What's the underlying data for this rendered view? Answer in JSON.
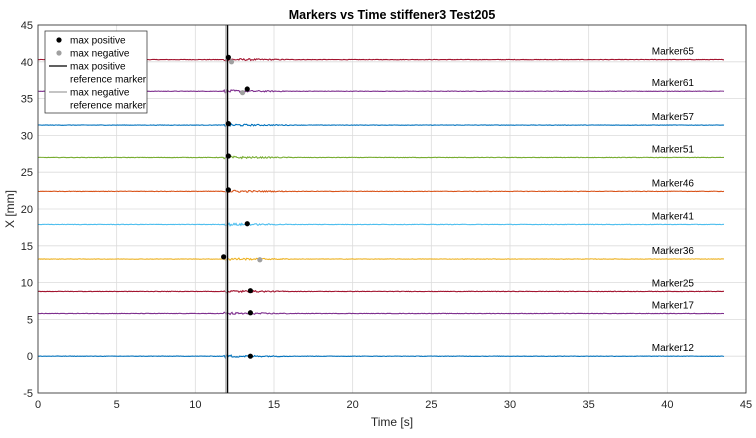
{
  "chart_data": {
    "type": "line",
    "title": "Markers vs Time stiffener3 Test205",
    "xlabel": "Time [s]",
    "ylabel": "X [mm]",
    "xlim": [
      0,
      45
    ],
    "ylim": [
      -5,
      45
    ],
    "xticks": [
      0,
      5,
      10,
      15,
      20,
      25,
      30,
      35,
      40,
      45
    ],
    "yticks": [
      -5,
      0,
      5,
      10,
      15,
      20,
      25,
      30,
      35,
      40,
      45
    ],
    "grid": true,
    "legend_position": "top-left",
    "legend": [
      {
        "label": "max positive",
        "style": "dot",
        "color": "#000000"
      },
      {
        "label": "max negative",
        "style": "dot",
        "color": "#a0a0a0"
      },
      {
        "label": "max positive reference marker",
        "style": "line",
        "color": "#000000"
      },
      {
        "label": "max negative reference marker",
        "style": "line",
        "color": "#a0a0a0"
      }
    ],
    "x_range": [
      0,
      43.6
    ],
    "reference_lines": {
      "max_positive_x": 12.05,
      "max_negative_x": 11.95
    },
    "series": [
      {
        "name": "Marker65",
        "baseline": 40.3,
        "color": "#a2142f",
        "max_positive": [
          12.1,
          40.6
        ],
        "max_negative": [
          12.3,
          40.0
        ]
      },
      {
        "name": "Marker61",
        "baseline": 36.0,
        "color": "#7e2f8e",
        "max_positive": [
          13.3,
          36.3
        ],
        "max_negative": [
          13.0,
          35.8
        ]
      },
      {
        "name": "Marker57",
        "baseline": 31.4,
        "color": "#0072bd",
        "max_positive": [
          12.1,
          31.6
        ],
        "max_negative": null
      },
      {
        "name": "Marker51",
        "baseline": 27.0,
        "color": "#77ac30",
        "max_positive": [
          12.1,
          27.2
        ],
        "max_negative": null
      },
      {
        "name": "Marker46",
        "baseline": 22.4,
        "color": "#d95319",
        "max_positive": [
          12.1,
          22.6
        ],
        "max_negative": null
      },
      {
        "name": "Marker41",
        "baseline": 17.9,
        "color": "#4dbeee",
        "max_positive": [
          13.3,
          18.0
        ],
        "max_negative": null
      },
      {
        "name": "Marker36",
        "baseline": 13.2,
        "color": "#edb120",
        "max_positive": [
          11.8,
          13.5
        ],
        "max_negative": [
          14.1,
          13.1
        ]
      },
      {
        "name": "Marker25",
        "baseline": 8.8,
        "color": "#a2142f",
        "max_positive": [
          13.5,
          8.9
        ],
        "max_negative": null
      },
      {
        "name": "Marker17",
        "baseline": 5.8,
        "color": "#7e2f8e",
        "max_positive": [
          13.5,
          5.9
        ],
        "max_negative": null
      },
      {
        "name": "Marker12",
        "baseline": 0.0,
        "color": "#0072bd",
        "max_positive": [
          13.5,
          0.0
        ],
        "max_negative": null
      }
    ]
  }
}
